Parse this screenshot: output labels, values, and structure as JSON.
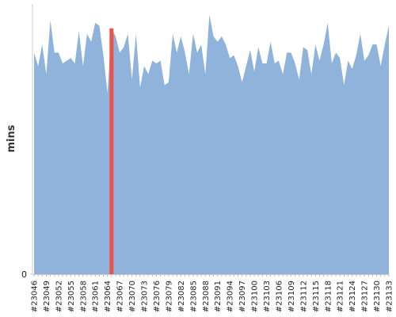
{
  "chart_data": {
    "type": "area",
    "y_label": "mins",
    "categories": [
      "#23046",
      null,
      null,
      "#23049",
      null,
      null,
      "#23052",
      null,
      null,
      "#23055",
      null,
      null,
      "#23058",
      null,
      null,
      "#23061",
      null,
      null,
      "#23064",
      null,
      null,
      "#23067",
      null,
      null,
      "#23070",
      null,
      null,
      "#23073",
      null,
      null,
      "#23076",
      null,
      null,
      "#23079",
      null,
      null,
      "#23082",
      null,
      null,
      "#23085",
      null,
      null,
      "#23088",
      null,
      null,
      "#23091",
      null,
      null,
      "#23094",
      null,
      null,
      "#23097",
      null,
      null,
      "#23100",
      null,
      null,
      "#23103",
      null,
      null,
      "#23106",
      null,
      null,
      "#23109",
      null,
      null,
      "#23112",
      null,
      null,
      "#23115",
      null,
      null,
      "#23118",
      null,
      null,
      "#23121",
      null,
      null,
      "#23124",
      null,
      null,
      "#23127",
      null,
      null,
      "#23130",
      null,
      null,
      "#23133"
    ],
    "series": [
      {
        "color": "#8fb3db",
        "values": [
          82,
          77,
          85,
          74,
          94,
          82,
          82,
          78,
          79,
          80,
          78,
          90,
          77,
          89,
          86,
          93,
          92,
          81,
          67,
          91,
          88,
          82,
          84,
          89,
          72,
          89,
          69,
          77,
          74,
          79,
          78,
          79,
          70,
          71,
          89,
          82,
          88,
          82,
          74,
          89,
          82,
          85,
          74,
          96,
          88,
          86,
          88,
          85,
          80,
          81,
          77,
          71,
          77,
          83,
          75,
          84,
          78,
          78,
          86,
          78,
          79,
          74,
          82,
          82,
          78,
          72,
          84,
          83,
          74,
          85,
          79,
          85,
          93,
          78,
          82,
          80,
          70,
          79,
          76,
          81,
          89,
          79,
          81,
          85,
          85,
          77,
          85,
          92
        ]
      }
    ],
    "highlight": {
      "index": 19,
      "color": "#e8534a"
    },
    "ylim": [
      0,
      100
    ],
    "yticks": [
      0
    ]
  }
}
